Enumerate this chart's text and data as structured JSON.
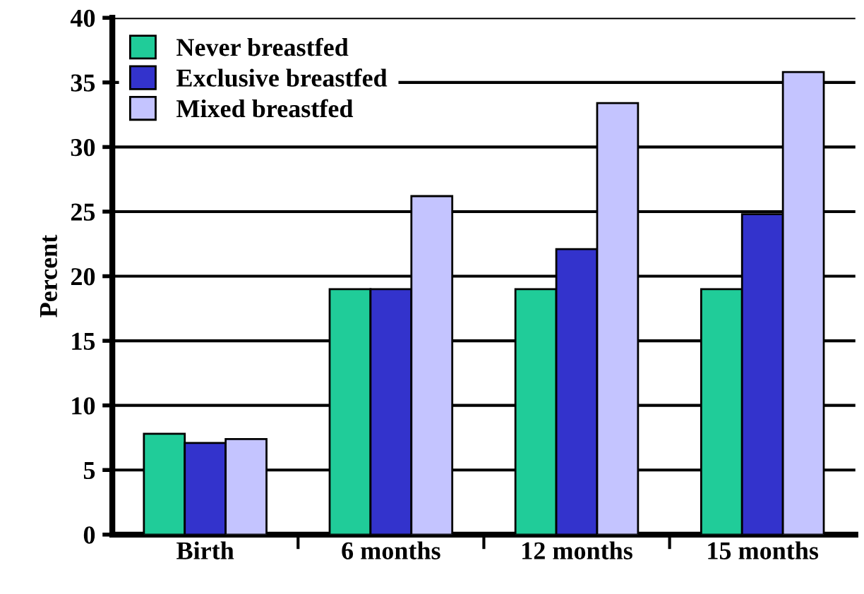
{
  "chart_data": {
    "type": "bar",
    "ylabel": "Percent",
    "categories": [
      "Birth",
      "6 months",
      "12 months",
      "15 months"
    ],
    "series": [
      {
        "name": "Never breastfed",
        "color": "#20cc99",
        "values": [
          7.8,
          19,
          19,
          19
        ]
      },
      {
        "name": "Exclusive breastfed",
        "color": "#3333cc",
        "values": [
          7.1,
          19,
          22.1,
          24.8
        ]
      },
      {
        "name": "Mixed breastfed",
        "color": "#c4c4ff",
        "values": [
          7.4,
          26.2,
          33.4,
          35.8
        ]
      }
    ],
    "ylim": [
      0,
      40
    ],
    "yticks": [
      0,
      5,
      10,
      15,
      20,
      25,
      30,
      35,
      40
    ],
    "grid": "y",
    "legend": "top left"
  }
}
